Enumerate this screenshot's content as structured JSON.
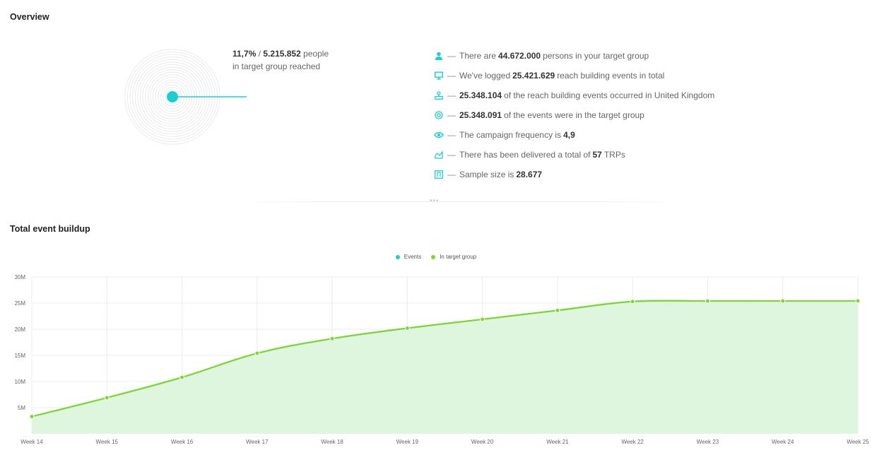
{
  "overview": {
    "title": "Overview",
    "reach": {
      "percent": "11,7%",
      "sep": " / ",
      "count": "5.215.852",
      "people": " people",
      "line2": "in target group reached"
    },
    "stats": [
      {
        "icon": "person-icon",
        "pre": "There are",
        "value": "44.672.000",
        "post": "persons in your target group"
      },
      {
        "icon": "monitor-icon",
        "pre": "We've logged",
        "value": "25.421.629",
        "post": "reach building events in total"
      },
      {
        "icon": "location-icon",
        "pre": "",
        "value": "25.348.104",
        "post": "of the reach building events occurred in United Kingdom"
      },
      {
        "icon": "target-icon",
        "pre": "",
        "value": "25.348.091",
        "post": "of the events were in the target group"
      },
      {
        "icon": "eye-icon",
        "pre": "The campaign frequency is",
        "value": "4,9",
        "post": ""
      },
      {
        "icon": "area-chart-icon",
        "pre": "There has been delivered a total of",
        "value": "57",
        "post": "TRPs"
      },
      {
        "icon": "sample-icon",
        "pre": "Sample size is",
        "value": "28.677",
        "post": ""
      }
    ],
    "dash": "—"
  },
  "buildup": {
    "title": "Total event buildup"
  },
  "colors": {
    "teal": "#1ccfcf",
    "green": "#7fd62f",
    "area": "#dff6de"
  },
  "chart_data": {
    "type": "area",
    "categories": [
      "Week 14",
      "Week 15",
      "Week 16",
      "Week 17",
      "Week 18",
      "Week 19",
      "Week 20",
      "Week 21",
      "Week 22",
      "Week 23",
      "Week 24",
      "Week 25"
    ],
    "yticks": [
      "5M",
      "10M",
      "15M",
      "20M",
      "25M",
      "30M"
    ],
    "ylim": [
      0,
      30000000
    ],
    "legend": "top-center",
    "grid": true,
    "series": [
      {
        "name": "Events",
        "color": "#1ccfcf",
        "values": [
          3300000,
          6900000,
          10800000,
          15400000,
          18200000,
          20200000,
          21900000,
          23600000,
          25300000,
          25400000,
          25400000,
          25400000
        ]
      },
      {
        "name": "In target group",
        "color": "#7fd62f",
        "values": [
          3300000,
          6900000,
          10800000,
          15400000,
          18200000,
          20200000,
          21900000,
          23600000,
          25300000,
          25400000,
          25400000,
          25400000
        ]
      }
    ]
  }
}
